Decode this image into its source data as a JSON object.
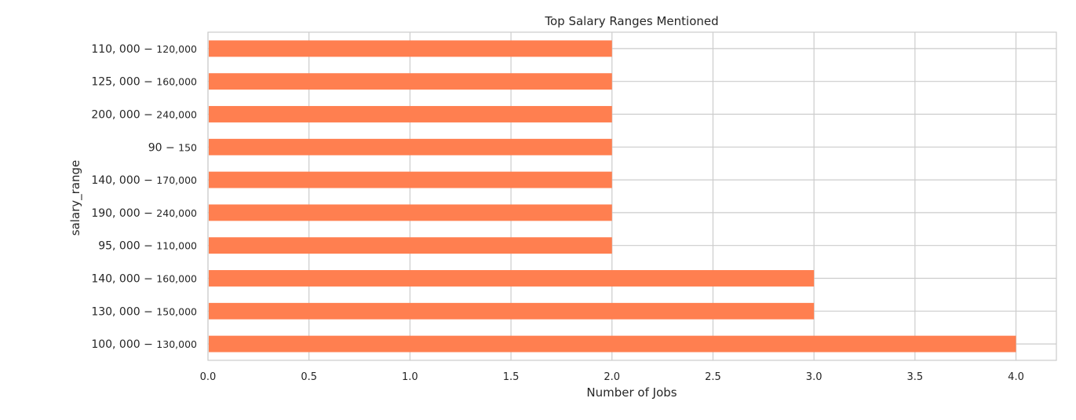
{
  "chart_data": {
    "type": "bar",
    "orientation": "horizontal",
    "title": "Top Salary Ranges Mentioned",
    "xlabel": "Number of Jobs",
    "ylabel": "salary_range",
    "categories": [
      {
        "main": "110, 000 − ",
        "sub": "120,000"
      },
      {
        "main": "125, 000 − ",
        "sub": "160,000"
      },
      {
        "main": "200, 000 − ",
        "sub": "240,000"
      },
      {
        "main": "90 − ",
        "sub": "150"
      },
      {
        "main": "140, 000 − ",
        "sub": "170,000"
      },
      {
        "main": "190, 000 − ",
        "sub": "240,000"
      },
      {
        "main": "95, 000 − ",
        "sub": "110,000"
      },
      {
        "main": "140, 000 − ",
        "sub": "160,000"
      },
      {
        "main": "130, 000 − ",
        "sub": "150,000"
      },
      {
        "main": "100, 000 − ",
        "sub": "130,000"
      }
    ],
    "values": [
      2,
      2,
      2,
      2,
      2,
      2,
      2,
      3,
      3,
      4
    ],
    "xlim": [
      0,
      4.2
    ],
    "xticks": [
      "0.0",
      "0.5",
      "1.0",
      "1.5",
      "2.0",
      "2.5",
      "3.0",
      "3.5",
      "4.0"
    ],
    "xtick_values": [
      0,
      0.5,
      1.0,
      1.5,
      2.0,
      2.5,
      3.0,
      3.5,
      4.0
    ],
    "grid": true,
    "bar_color": "#ff7f50",
    "grid_color": "#cccccc",
    "frame_color": "#cccccc"
  }
}
